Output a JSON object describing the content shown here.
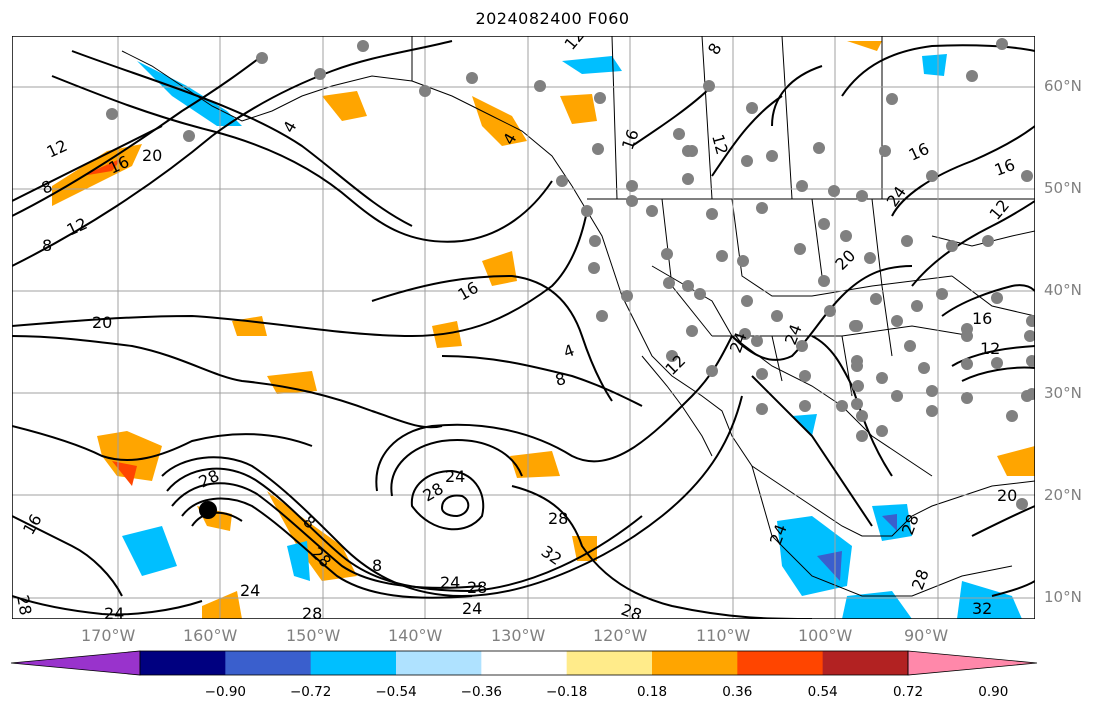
{
  "title": "2024082400 F060",
  "lat_labels": [
    "60°N",
    "50°N",
    "40°N",
    "30°N",
    "20°N",
    "10°N"
  ],
  "lon_labels": [
    "170°W",
    "160°W",
    "150°W",
    "140°W",
    "130°W",
    "120°W",
    "110°W",
    "100°W",
    "90°W"
  ],
  "colorbar": {
    "colors": [
      "#9933cc",
      "#000080",
      "#3a5fcd",
      "#00bfff",
      "#afe2ff",
      "#ffffff",
      "#ffeb8a",
      "#ffa500",
      "#ff4500",
      "#b22222",
      "#ff88aa"
    ],
    "ticks": [
      "−0.90",
      "−0.72",
      "−0.54",
      "−0.36",
      "−0.18",
      "0.18",
      "0.36",
      "0.54",
      "0.72",
      "0.90"
    ]
  },
  "contour_labels": [
    "8",
    "12",
    "16",
    "20",
    "24",
    "28",
    "32",
    "4"
  ],
  "map_style": {
    "contour_color": "#000000",
    "station_marker_color": "#808080",
    "storm_center_color": "#000000",
    "grid_color": "#a0a0a0"
  }
}
